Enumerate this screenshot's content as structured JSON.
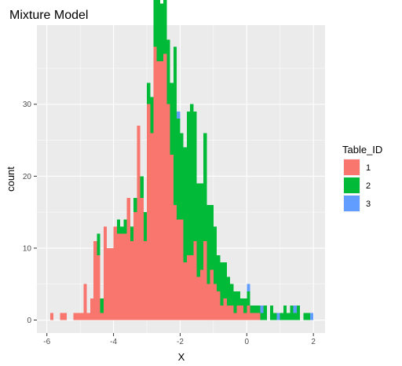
{
  "chart_data": {
    "type": "bar",
    "title": "Mixture Model",
    "xlabel": "X",
    "ylabel": "count",
    "xlim": [
      -6.3,
      2.35
    ],
    "ylim": [
      -1.8,
      41
    ],
    "x_ticks": [
      -6,
      -4,
      -2,
      0,
      2
    ],
    "y_ticks": [
      0,
      10,
      20,
      30
    ],
    "x_tick_labels": [
      "-6",
      "-4",
      "-2",
      "0",
      "2"
    ],
    "y_tick_labels": [
      "0",
      "10",
      "20",
      "30"
    ],
    "grid": true,
    "stacked": true,
    "bin_width": 0.1,
    "legend": {
      "title": "Table_ID",
      "position": "right",
      "entries": [
        {
          "label": "1",
          "color": "#F8766D"
        },
        {
          "label": "2",
          "color": "#00BA38"
        },
        {
          "label": "3",
          "color": "#619CFF"
        }
      ]
    },
    "series": [
      {
        "name": "1",
        "color": "#F8766D",
        "x": [
          -5.85,
          -5.75,
          -5.55,
          -5.45,
          -5.35,
          -5.15,
          -5.05,
          -4.95,
          -4.85,
          -4.75,
          -4.65,
          -4.55,
          -4.45,
          -4.35,
          -4.25,
          -4.15,
          -4.05,
          -3.95,
          -3.85,
          -3.75,
          -3.65,
          -3.55,
          -3.45,
          -3.35,
          -3.25,
          -3.15,
          -3.05,
          -2.95,
          -2.85,
          -2.75,
          -2.65,
          -2.55,
          -2.45,
          -2.35,
          -2.25,
          -2.15,
          -2.05,
          -1.95,
          -1.85,
          -1.75,
          -1.65,
          -1.55,
          -1.45,
          -1.35,
          -1.25,
          -1.15,
          -1.05,
          -0.95,
          -0.85,
          -0.75,
          -0.65,
          -0.55,
          -0.45,
          -0.35,
          -0.25,
          -0.15,
          -0.05,
          0.05,
          0.15,
          0.25,
          0.35
        ],
        "values": [
          1,
          0,
          1,
          1,
          0,
          1,
          1,
          1,
          5,
          1,
          3,
          11,
          9,
          1,
          13,
          10,
          10,
          13,
          12,
          12,
          12,
          17,
          11,
          15,
          27,
          17,
          11,
          30,
          26,
          38,
          36,
          36,
          37,
          30,
          23,
          16,
          14,
          14,
          8,
          9,
          9,
          11,
          6,
          7,
          11,
          5,
          7,
          5,
          4,
          2,
          3,
          2,
          2,
          1,
          2,
          2,
          1,
          2,
          1,
          1,
          1
        ]
      },
      {
        "name": "2",
        "color": "#00BA38",
        "x": [
          -4.45,
          -4.35,
          -3.85,
          -3.75,
          -3.65,
          -3.45,
          -3.35,
          -3.15,
          -3.05,
          -2.95,
          -2.85,
          -2.75,
          -2.65,
          -2.55,
          -2.45,
          -2.35,
          -2.25,
          -2.15,
          -2.05,
          -1.95,
          -1.85,
          -1.75,
          -1.65,
          -1.55,
          -1.45,
          -1.35,
          -1.25,
          -1.15,
          -1.05,
          -0.95,
          -0.85,
          -0.75,
          -0.65,
          -0.55,
          -0.45,
          -0.35,
          -0.25,
          -0.15,
          -0.05,
          0.05,
          0.15,
          0.25,
          0.35,
          0.45,
          0.55,
          0.75,
          0.85,
          1.05,
          1.15,
          1.25,
          1.35,
          1.45,
          1.55,
          1.75,
          1.85
        ],
        "values": [
          3,
          2,
          2,
          1,
          2,
          2,
          2,
          3,
          4,
          3,
          5,
          8,
          10,
          8,
          9,
          9,
          10,
          22,
          14,
          12,
          16,
          20,
          21,
          18,
          13,
          12,
          15,
          11,
          9,
          8,
          5,
          6,
          5,
          4,
          3,
          3,
          2,
          1,
          2,
          2,
          1,
          1,
          1,
          1,
          2,
          2,
          1,
          1,
          2,
          1,
          2,
          1,
          2,
          1,
          1
        ]
      },
      {
        "name": "3",
        "color": "#619CFF",
        "x": [
          -2.05,
          0.05,
          0.45,
          0.95,
          1.45,
          1.95
        ],
        "values": [
          1,
          1,
          1,
          1,
          1,
          1
        ]
      }
    ]
  }
}
